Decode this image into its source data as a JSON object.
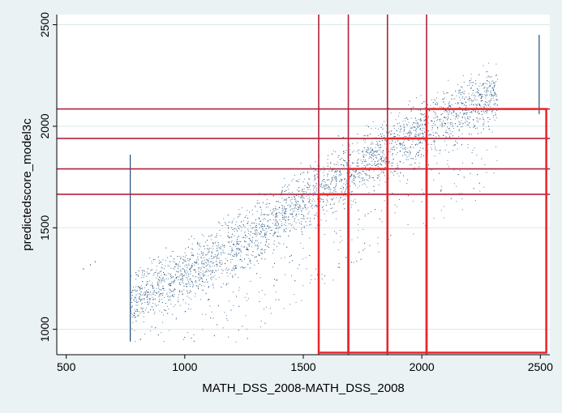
{
  "chart_data": {
    "type": "scatter",
    "title": "",
    "xlabel": "MATH_DSS_2008-MATH_DSS_2008",
    "ylabel": "predictedscore_model3c",
    "xlim": [
      460,
      2540
    ],
    "ylim": [
      875,
      2550
    ],
    "x_ticks": [
      500,
      1000,
      1500,
      2000,
      2500
    ],
    "y_ticks": [
      1000,
      1500,
      2000,
      2500
    ],
    "grid": true,
    "colors": {
      "background": "#eaf2f3",
      "plot_area": "#ffffff",
      "points": "#1f4e79",
      "grid": "#d9e6ea",
      "reference_lines": "#b0203a",
      "boxes": "#e8242b"
    },
    "series": [
      {
        "points_approx": [
          [
            570,
            1300
          ],
          [
            600,
            1320
          ],
          [
            620,
            1335
          ],
          [
            1000,
            1090
          ],
          [
            1100,
            1150
          ],
          [
            1200,
            1260
          ],
          [
            1300,
            1360
          ],
          [
            1400,
            1460
          ],
          [
            1500,
            1560
          ],
          [
            1600,
            1660
          ],
          [
            1700,
            1760
          ],
          [
            1800,
            1860
          ],
          [
            1900,
            1940
          ],
          [
            2000,
            2010
          ],
          [
            2100,
            2080
          ],
          [
            2200,
            2140
          ],
          [
            2300,
            2180
          ]
        ],
        "dense_band_center": [
          [
            770,
            1150
          ],
          [
            1000,
            1280
          ],
          [
            1200,
            1400
          ],
          [
            1400,
            1560
          ],
          [
            1600,
            1720
          ],
          [
            1800,
            1860
          ],
          [
            2000,
            1990
          ],
          [
            2200,
            2100
          ],
          [
            2320,
            2150
          ]
        ],
        "dense_band_halfwidth": 220,
        "vertical_stacks": [
          {
            "x": 770,
            "y_min": 940,
            "y_max": 1860
          },
          {
            "x": 2495,
            "y_min": 2060,
            "y_max": 2450
          }
        ]
      }
    ],
    "reference_lines": {
      "vertical": [
        1565,
        1690,
        1855,
        2020
      ],
      "horizontal": [
        1665,
        1790,
        1940,
        2085
      ]
    },
    "boxes": [
      {
        "x0": 1565,
        "x1": 1690,
        "y0": 885,
        "y1": 1665
      },
      {
        "x0": 1690,
        "x1": 1855,
        "y0": 885,
        "y1": 1790
      },
      {
        "x0": 1855,
        "x1": 2020,
        "y0": 885,
        "y1": 1940
      },
      {
        "x0": 2020,
        "x1": 2525,
        "y0": 885,
        "y1": 2085
      }
    ]
  }
}
